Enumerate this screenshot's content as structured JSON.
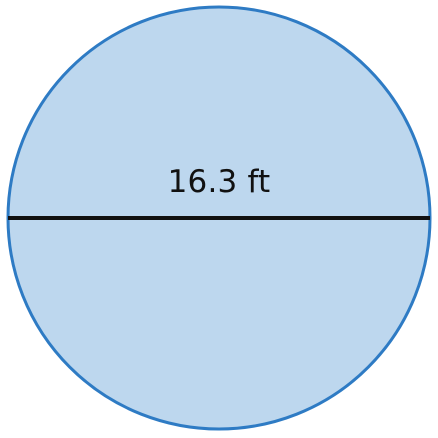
{
  "diagram": {
    "shape": "circle",
    "diameter_label": "16.3 ft",
    "colors": {
      "fill": "#bdd7ee",
      "outline": "#2e7bc4",
      "diameter_line": "#111111",
      "label_text": "#111111",
      "background": "#ffffff"
    }
  }
}
